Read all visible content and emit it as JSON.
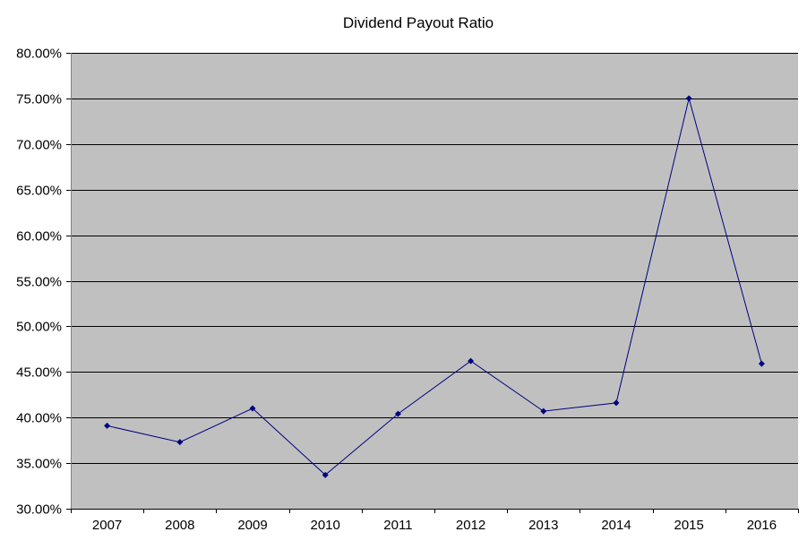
{
  "chart_data": {
    "type": "line",
    "title": "Dividend Payout Ratio",
    "xlabel": "",
    "ylabel": "",
    "categories": [
      "2007",
      "2008",
      "2009",
      "2010",
      "2011",
      "2012",
      "2013",
      "2014",
      "2015",
      "2016"
    ],
    "series": [
      {
        "values": [
          39.1,
          37.3,
          41.0,
          33.7,
          40.4,
          46.2,
          40.7,
          41.6,
          75.0,
          45.9
        ]
      }
    ],
    "ylim": [
      30,
      80
    ],
    "y_ticks": [
      30,
      35,
      40,
      45,
      50,
      55,
      60,
      65,
      70,
      75,
      80
    ],
    "y_tick_labels": [
      "30.00%",
      "35.00%",
      "40.00%",
      "45.00%",
      "50.00%",
      "55.00%",
      "60.00%",
      "65.00%",
      "70.00%",
      "75.00%",
      "80.00%"
    ],
    "grid": true,
    "legend": "none",
    "colors": {
      "plot_background": "#c0c0c0",
      "series_line": "#000080",
      "marker": "#000080",
      "gridline": "#000000"
    }
  }
}
